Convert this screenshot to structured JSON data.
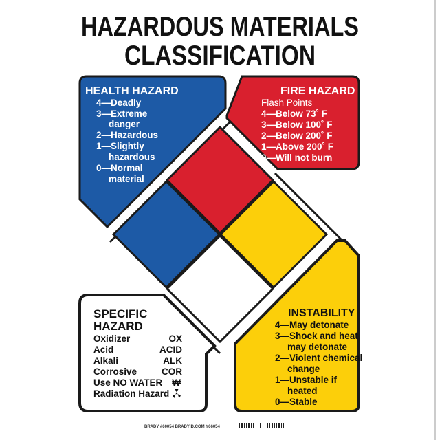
{
  "title": {
    "line1": "HAZARDOUS MATERIALS",
    "line2": "CLASSIFICATION"
  },
  "colors": {
    "health": "#1d5aa6",
    "fire": "#d9202e",
    "instability": "#fccf0a",
    "specific": "#ffffff",
    "outline": "#1a1a1a"
  },
  "health": {
    "heading": "HEALTH HAZARD",
    "items": [
      "4—Deadly",
      "3—Extreme",
      "danger",
      "2—Hazardous",
      "1—Slightly",
      "hazardous",
      "0—Normal",
      "material"
    ]
  },
  "fire": {
    "heading": "FIRE HAZARD",
    "subheading": "Flash Points",
    "items": [
      "4—Below 73˚ F",
      "3—Below 100˚ F",
      "2—Below 200˚ F",
      "1—Above 200˚ F",
      "0—Will not burn"
    ]
  },
  "specific": {
    "heading1": "SPECIFIC",
    "heading2": "HAZARD",
    "rows": [
      {
        "label": "Oxidizer",
        "code": "OX"
      },
      {
        "label": "Acid",
        "code": "ACID"
      },
      {
        "label": "Alkali",
        "code": "ALK"
      },
      {
        "label": "Corrosive",
        "code": "COR"
      },
      {
        "label": "Use NO WATER",
        "code": "₩"
      },
      {
        "label": "Radiation Hazard",
        "code": "radiation-icon"
      }
    ]
  },
  "instability": {
    "heading": "INSTABILITY",
    "items": [
      "4—May detonate",
      "3—Shock and heat",
      "may detonate",
      "2—Violent chemical",
      "change",
      "1—Unstable if",
      "heated",
      "0—Stable"
    ]
  },
  "footer": {
    "text": "BRADY #60054 BRADYID.COM Y66054"
  }
}
